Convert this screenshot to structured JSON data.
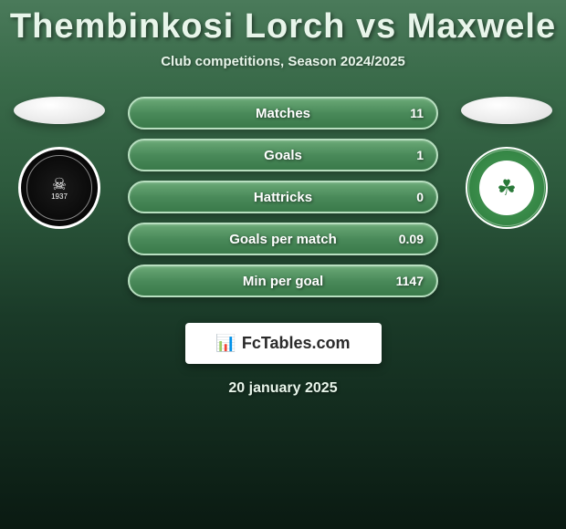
{
  "title": "Thembinkosi Lorch vs Maxwele",
  "subtitle": "Club competitions, Season 2024/2025",
  "stats": [
    {
      "label": "Matches",
      "value": "11"
    },
    {
      "label": "Goals",
      "value": "1"
    },
    {
      "label": "Hattricks",
      "value": "0"
    },
    {
      "label": "Goals per match",
      "value": "0.09"
    },
    {
      "label": "Min per goal",
      "value": "1147"
    }
  ],
  "brand": "FcTables.com",
  "date": "20 january 2025",
  "badges": {
    "left": {
      "year": "1937",
      "name": "orlando-pirates"
    },
    "right": {
      "name": "bloemfontein-celtic"
    }
  },
  "colors": {
    "bar_border": "#b8dfc0",
    "bar_bg_top": "#6aa976",
    "bar_bg_bottom": "#3a7a4a",
    "text": "#e8f5ea"
  }
}
